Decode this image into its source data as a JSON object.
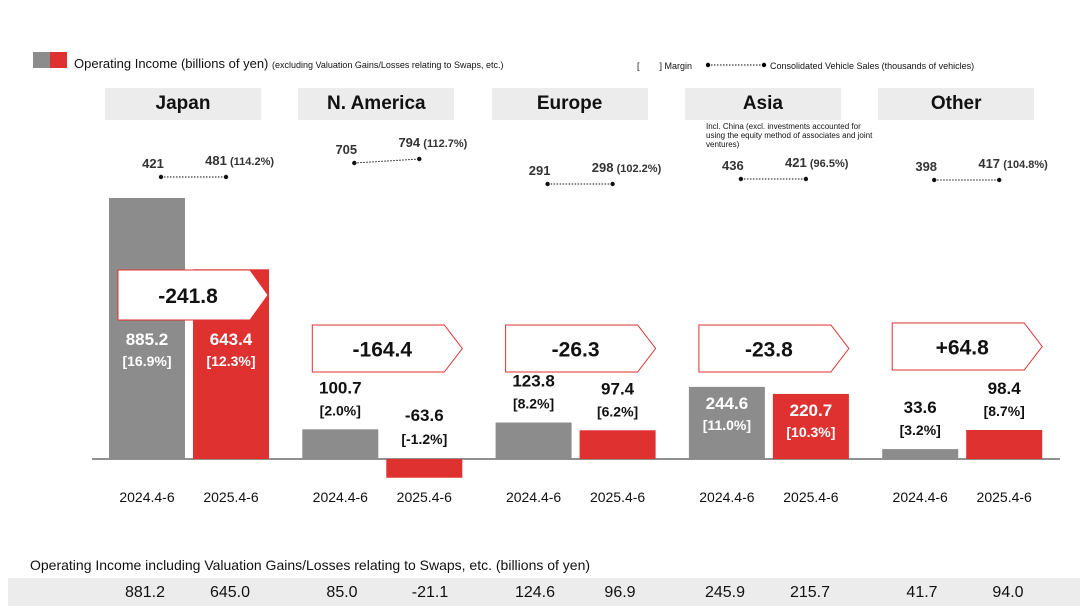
{
  "legend": {
    "operating_income": "Operating Income (billions of yen)",
    "operating_income_note": "(excluding Valuation Gains/Losses relating to Swaps, etc.)",
    "margin_open": "[",
    "margin_label": "] Margin",
    "sales_label": "Consolidated Vehicle Sales (thousands of vehicles)"
  },
  "asia_note": "Incl. China (excl. investments accounted for using the equity method of associates and joint ventures)",
  "colors": {
    "prior": "#8c8c8c",
    "current": "#e03131",
    "header_bg": "#ececec"
  },
  "chart_data": {
    "type": "bar",
    "categories": [
      "2024.4-6",
      "2025.4-6"
    ],
    "regions": [
      {
        "name": "Japan",
        "values": [
          885.2,
          643.4
        ],
        "margins": [
          "[16.9%]",
          "[12.3%]"
        ],
        "change": "-241.8",
        "sales": [
          "421",
          "481"
        ],
        "sales_ratio": "(114.2%)"
      },
      {
        "name": "N. America",
        "values": [
          100.7,
          -63.6
        ],
        "margins": [
          "[2.0%]",
          "[-1.2%]"
        ],
        "change": "-164.4",
        "sales": [
          "705",
          "794"
        ],
        "sales_ratio": "(112.7%)"
      },
      {
        "name": "Europe",
        "values": [
          123.8,
          97.4
        ],
        "margins": [
          "[8.2%]",
          "[6.2%]"
        ],
        "change": "-26.3",
        "sales": [
          "291",
          "298"
        ],
        "sales_ratio": "(102.2%)"
      },
      {
        "name": "Asia",
        "values": [
          244.6,
          220.7
        ],
        "margins": [
          "[11.0%]",
          "[10.3%]"
        ],
        "change": "-23.8",
        "sales": [
          "436",
          "421"
        ],
        "sales_ratio": "(96.5%)"
      },
      {
        "name": "Other",
        "values": [
          33.6,
          98.4
        ],
        "margins": [
          "[3.2%]",
          "[8.7%]"
        ],
        "change": "+64.8",
        "sales": [
          "398",
          "417"
        ],
        "sales_ratio": "(104.8%)"
      }
    ]
  },
  "bottom": {
    "label": "Operating Income including Valuation Gains/Losses relating to Swaps, etc. (billions of yen)",
    "values": [
      "881.2",
      "645.0",
      "85.0",
      "-21.1",
      "124.6",
      "96.9",
      "245.9",
      "215.7",
      "41.7",
      "94.0"
    ]
  }
}
